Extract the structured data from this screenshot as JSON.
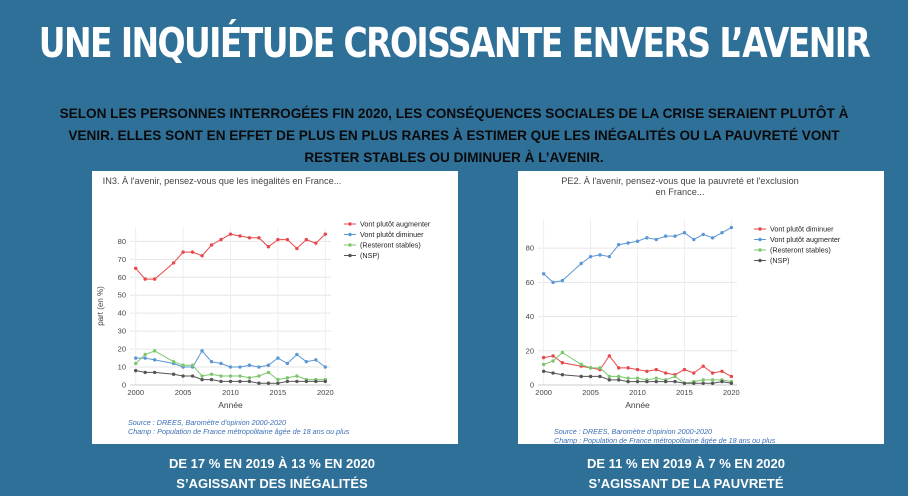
{
  "page": {
    "title": "UNE INQUIÉTUDE CROISSANTE ENVERS L’AVENIR",
    "subtitle_lines": [
      "SELON LES PERSONNES INTERROGÉES FIN 2020, LES CONSÉQUENCES SOCIALES DE LA CRISE SERAIENT PLUTÔT À",
      "VENIR. ELLES SONT EN EFFET DE PLUS EN PLUS RARES À ESTIMER QUE LES INÉGALITÉS OU LA PAUVRETÉ VONT",
      "RESTER STABLES OU DIMINUER À L’AVENIR."
    ],
    "caption_left": [
      "DE 17 % EN 2019 À 13 % EN 2020",
      "S’AGISSANT DES INÉGALITÉS"
    ],
    "caption_right": [
      "DE 11 % EN 2019 À 7 % EN 2020",
      "S’AGISSANT DE LA PAUVRETÉ"
    ]
  },
  "colors": {
    "background": "#2f7099",
    "red": "#e8484b",
    "blue": "#5b97d3",
    "green": "#7cc76d",
    "gray": "#555555",
    "note": "#3b6fb6"
  },
  "chart_data": [
    {
      "type": "line",
      "title": [
        "IN3. À l'avenir, pensez-vous que les inégalités en France..."
      ],
      "xlabel": "Année",
      "ylabel": "part (en %)",
      "xlim": [
        1999.4,
        2020.6
      ],
      "ylim": [
        0,
        88
      ],
      "xticks": [
        2000,
        2005,
        2010,
        2015,
        2020
      ],
      "yticks": [
        0,
        10,
        20,
        30,
        40,
        50,
        60,
        70,
        80
      ],
      "grid": true,
      "legend": "top-right",
      "x": [
        2000,
        2001,
        2002,
        2004,
        2005,
        2006,
        2007,
        2008,
        2009,
        2010,
        2011,
        2012,
        2013,
        2014,
        2015,
        2016,
        2017,
        2018,
        2019,
        2020
      ],
      "series": [
        {
          "name": "Vont plutôt augmenter",
          "color": "#e8484b",
          "values": [
            65,
            59,
            59,
            68,
            74,
            74,
            72,
            78,
            81,
            84,
            83,
            82,
            82,
            77,
            81,
            81,
            76,
            81,
            79,
            84
          ]
        },
        {
          "name": "Vont plutôt diminuer",
          "color": "#5b97d3",
          "values": [
            15,
            15,
            14,
            12,
            10,
            10,
            19,
            13,
            12,
            10,
            10,
            11,
            10,
            11,
            15,
            12,
            17,
            13,
            14,
            10
          ]
        },
        {
          "name": "(Resteront stables)",
          "color": "#7cc76d",
          "values": [
            12,
            17,
            19,
            13,
            11,
            11,
            5,
            6,
            5,
            5,
            5,
            4,
            5,
            7,
            3,
            4,
            5,
            3,
            3,
            3
          ]
        },
        {
          "name": "(NSP)",
          "color": "#555555",
          "values": [
            8,
            7,
            7,
            6,
            5,
            5,
            3,
            3,
            2,
            2,
            2,
            2,
            1,
            1,
            1,
            2,
            2,
            2,
            2,
            2
          ]
        }
      ],
      "notes": [
        "Source : DREES, Baromètre d'opinion 2000-2020",
        "Champ : Population de France métropolitaine âgée de 18 ans ou plus"
      ]
    },
    {
      "type": "line",
      "title": [
        "PE2. À l'avenir, pensez-vous que la pauvreté et l'exclusion",
        "en France..."
      ],
      "xlabel": "Année",
      "ylabel": "part (en %)",
      "xlim": [
        1999.4,
        2020.6
      ],
      "ylim": [
        0,
        97
      ],
      "xticks": [
        2000,
        2005,
        2010,
        2015,
        2020
      ],
      "yticks": [
        0,
        20,
        40,
        60,
        80
      ],
      "grid": true,
      "legend": "top-right",
      "x": [
        2000,
        2001,
        2002,
        2004,
        2005,
        2006,
        2007,
        2008,
        2009,
        2010,
        2011,
        2012,
        2013,
        2014,
        2015,
        2016,
        2017,
        2018,
        2019,
        2020
      ],
      "series": [
        {
          "name": "Vont plutôt diminuer",
          "color": "#e8484b",
          "values": [
            16,
            17,
            13,
            11,
            10,
            9,
            17,
            10,
            10,
            9,
            8,
            9,
            7,
            6,
            9,
            7,
            11,
            7,
            8,
            5
          ]
        },
        {
          "name": "Vont plutôt augmenter",
          "color": "#5b97d3",
          "values": [
            65,
            60,
            61,
            71,
            75,
            76,
            75,
            82,
            83,
            84,
            86,
            85,
            87,
            87,
            89,
            85,
            88,
            86,
            89,
            92
          ]
        },
        {
          "name": "(Resteront stables)",
          "color": "#7cc76d",
          "values": [
            12,
            14,
            19,
            12,
            10,
            10,
            5,
            5,
            4,
            4,
            3,
            4,
            3,
            5,
            1,
            2,
            3,
            3,
            3,
            2
          ]
        },
        {
          "name": "(NSP)",
          "color": "#555555",
          "values": [
            8,
            7,
            6,
            5,
            5,
            5,
            3,
            3,
            2,
            2,
            2,
            2,
            2,
            2,
            1,
            1,
            1,
            1,
            2,
            1
          ]
        }
      ],
      "notes": [
        "Source : DREES, Baromètre d'opinion 2000-2020",
        "Champ : Population de France métropolitaine âgée de 18 ans ou plus"
      ]
    }
  ]
}
